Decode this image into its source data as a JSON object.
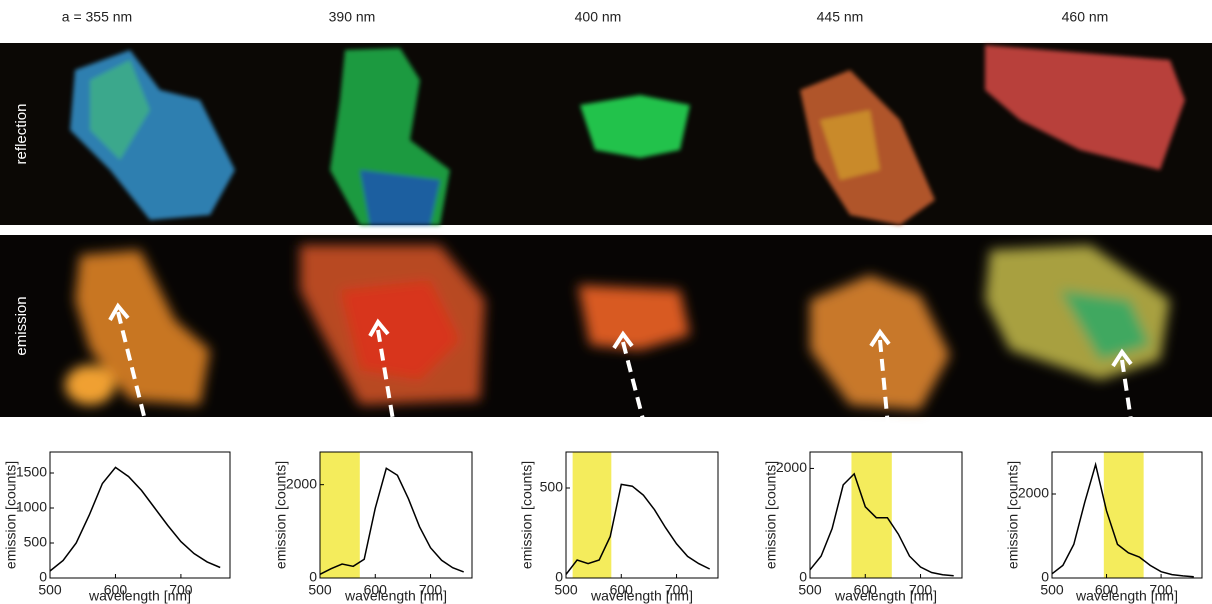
{
  "columns": [
    "a = 355 nm",
    "390 nm",
    "400 nm",
    "445 nm",
    "460 nm"
  ],
  "rows": [
    "reflection",
    "emission"
  ],
  "chart_data": [
    {
      "type": "line",
      "xlabel": "wavelength [nm]",
      "ylabel": "emission [counts]",
      "color": "#000000",
      "highlight_color": "#f4ec5c",
      "x": [
        500,
        520,
        540,
        560,
        580,
        600,
        620,
        640,
        660,
        680,
        700,
        720,
        740,
        760
      ],
      "values": [
        100,
        250,
        500,
        900,
        1350,
        1580,
        1450,
        1250,
        1000,
        750,
        520,
        350,
        230,
        150
      ],
      "xlim": [
        500,
        775
      ],
      "ylim": [
        0,
        1800
      ],
      "xticks": [
        500,
        600,
        700
      ],
      "yticks": [
        0,
        500,
        1000,
        1500
      ]
    },
    {
      "type": "line",
      "xlabel": "wavelength [nm]",
      "ylabel": "emission [counts]",
      "color": "#000000",
      "highlight": [
        500,
        572
      ],
      "highlight_color": "#f4ec5c",
      "x": [
        500,
        520,
        540,
        560,
        580,
        600,
        620,
        640,
        660,
        680,
        700,
        720,
        740,
        760
      ],
      "values": [
        80,
        200,
        300,
        250,
        400,
        1500,
        2350,
        2200,
        1700,
        1100,
        650,
        380,
        220,
        130
      ],
      "xlim": [
        500,
        775
      ],
      "ylim": [
        0,
        2700
      ],
      "xticks": [
        500,
        600,
        700
      ],
      "yticks": [
        0,
        2000
      ]
    },
    {
      "type": "line",
      "xlabel": "wavelength [nm]",
      "ylabel": "emission [counts]",
      "color": "#000000",
      "highlight": [
        512,
        582
      ],
      "highlight_color": "#f4ec5c",
      "x": [
        500,
        520,
        540,
        560,
        580,
        600,
        620,
        640,
        660,
        680,
        700,
        720,
        740,
        760
      ],
      "values": [
        20,
        100,
        80,
        100,
        230,
        520,
        510,
        460,
        380,
        280,
        190,
        120,
        80,
        50
      ],
      "xlim": [
        500,
        775
      ],
      "ylim": [
        0,
        700
      ],
      "xticks": [
        500,
        600,
        700
      ],
      "yticks": [
        0,
        500
      ]
    },
    {
      "type": "line",
      "xlabel": "wavelength [nm]",
      "ylabel": "emission [counts]",
      "color": "#000000",
      "highlight": [
        575,
        648
      ],
      "highlight_color": "#f4ec5c",
      "x": [
        500,
        520,
        540,
        560,
        580,
        600,
        620,
        640,
        660,
        680,
        700,
        720,
        740,
        760
      ],
      "values": [
        150,
        400,
        900,
        1700,
        1900,
        1300,
        1100,
        1100,
        800,
        400,
        200,
        100,
        60,
        40
      ],
      "xlim": [
        500,
        775
      ],
      "ylim": [
        0,
        2300
      ],
      "xticks": [
        500,
        600,
        700
      ],
      "yticks": [
        0,
        2000
      ]
    },
    {
      "type": "line",
      "xlabel": "wavelength [nm]",
      "ylabel": "emission [counts]",
      "color": "#000000",
      "highlight": [
        595,
        668
      ],
      "highlight_color": "#f4ec5c",
      "x": [
        500,
        520,
        540,
        560,
        580,
        600,
        620,
        640,
        660,
        680,
        700,
        720,
        740,
        760
      ],
      "values": [
        100,
        300,
        800,
        1800,
        2700,
        1600,
        800,
        600,
        500,
        300,
        150,
        80,
        50,
        30
      ],
      "xlim": [
        500,
        775
      ],
      "ylim": [
        0,
        3000
      ],
      "xticks": [
        500,
        600,
        700
      ],
      "yticks": [
        0,
        2000
      ]
    }
  ]
}
